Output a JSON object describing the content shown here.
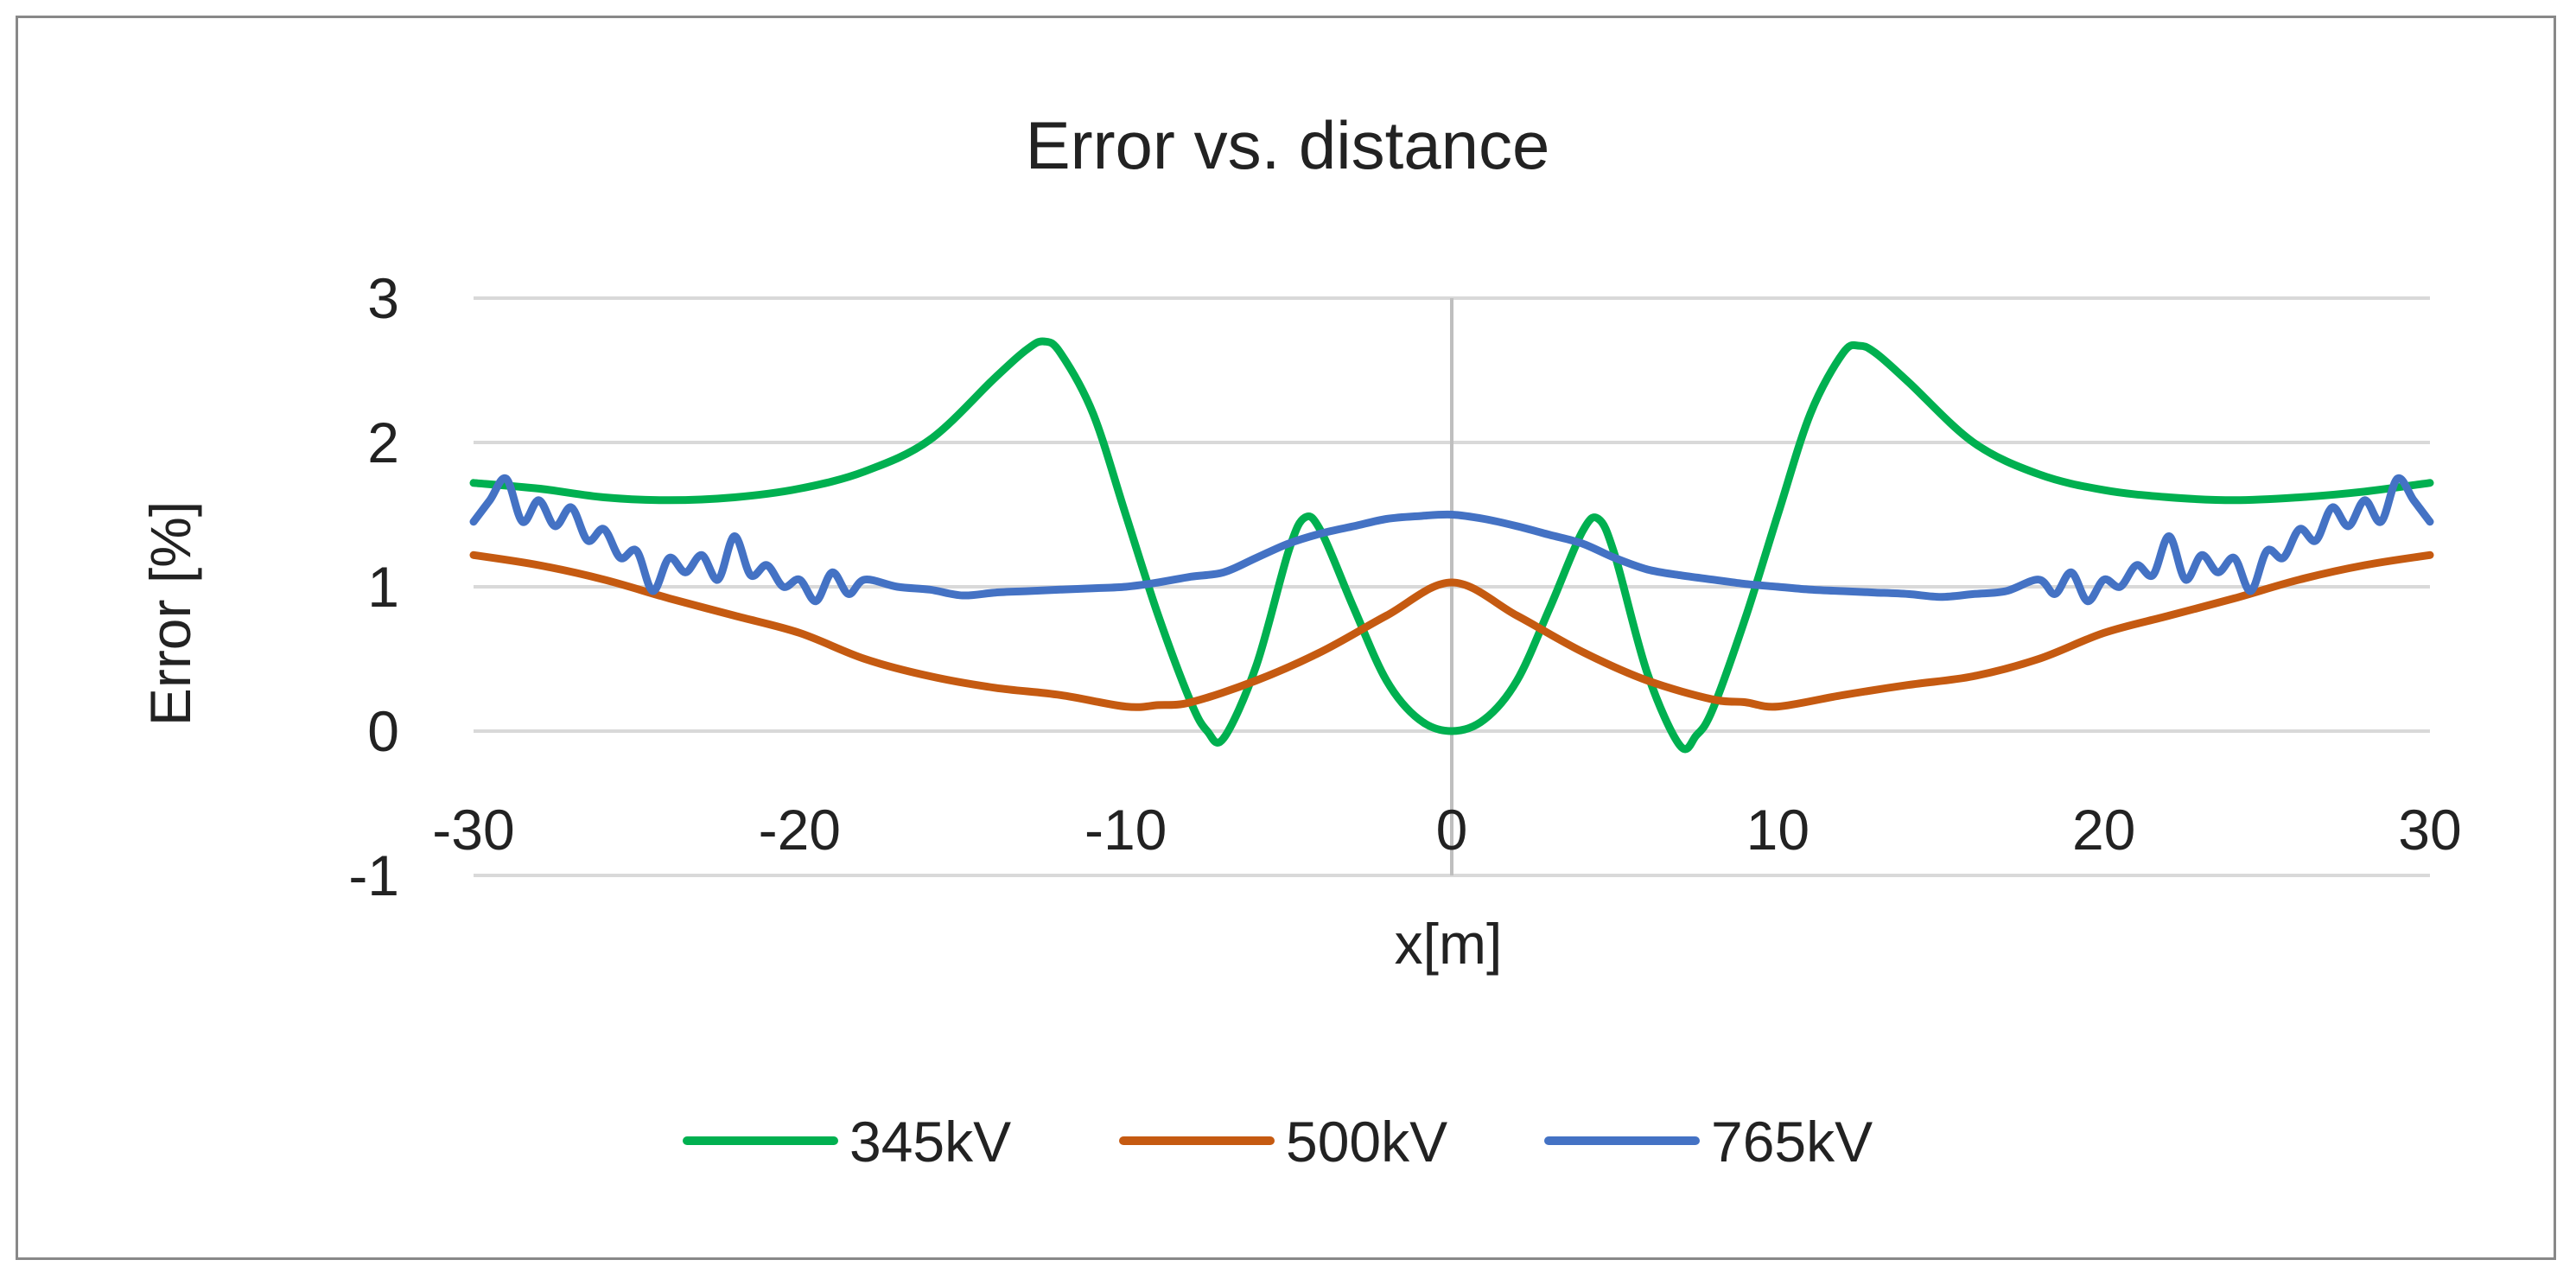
{
  "chart_data": {
    "type": "line",
    "title": "Error vs. distance",
    "xlabel": "x[m]",
    "ylabel": "Error [%]",
    "xlim": [
      -30,
      30
    ],
    "ylim": [
      -1,
      3
    ],
    "xticks": [
      -30,
      -20,
      -10,
      0,
      10,
      20,
      30
    ],
    "yticks": [
      -1,
      0,
      1,
      2,
      3
    ],
    "grid": "horizontal",
    "legend": "bottom",
    "series": [
      {
        "name": "345kV",
        "color": "#00b050",
        "x": [
          -30,
          -28,
          -26,
          -24,
          -22,
          -20,
          -18,
          -16,
          -14,
          -13,
          -12.5,
          -12,
          -11,
          -10,
          -9,
          -8,
          -7.5,
          -7,
          -6,
          -5,
          -4.5,
          -4,
          -3,
          -2,
          -1,
          0,
          1,
          2,
          3,
          4,
          4.5,
          5,
          6,
          7,
          7.5,
          8,
          9,
          10,
          11,
          12,
          12.5,
          13,
          14,
          16,
          18,
          20,
          22,
          24,
          26,
          28,
          30
        ],
        "y": [
          1.72,
          1.68,
          1.62,
          1.6,
          1.62,
          1.68,
          1.8,
          2.02,
          2.45,
          2.65,
          2.7,
          2.62,
          2.2,
          1.5,
          0.8,
          0.2,
          0.0,
          -0.05,
          0.45,
          1.25,
          1.48,
          1.38,
          0.85,
          0.35,
          0.08,
          0.0,
          0.08,
          0.35,
          0.85,
          1.38,
          1.47,
          1.22,
          0.4,
          -0.1,
          -0.03,
          0.15,
          0.78,
          1.5,
          2.2,
          2.62,
          2.67,
          2.62,
          2.42,
          2.0,
          1.78,
          1.67,
          1.62,
          1.6,
          1.62,
          1.66,
          1.72
        ]
      },
      {
        "name": "500kV",
        "color": "#c55a11",
        "x": [
          -30,
          -28,
          -26,
          -24,
          -22,
          -20,
          -18,
          -16,
          -14,
          -12,
          -10,
          -9,
          -8,
          -6,
          -4,
          -2,
          0,
          2,
          4,
          6,
          8,
          9,
          10,
          12,
          14,
          16,
          18,
          20,
          22,
          24,
          26,
          28,
          30
        ],
        "y": [
          1.22,
          1.15,
          1.05,
          0.92,
          0.8,
          0.68,
          0.5,
          0.38,
          0.3,
          0.25,
          0.17,
          0.18,
          0.2,
          0.35,
          0.55,
          0.8,
          1.03,
          0.8,
          0.55,
          0.35,
          0.22,
          0.2,
          0.17,
          0.25,
          0.32,
          0.38,
          0.5,
          0.68,
          0.8,
          0.92,
          1.05,
          1.15,
          1.22
        ]
      },
      {
        "name": "765kV",
        "color": "#4472c4",
        "x": [
          -30,
          -29.5,
          -29,
          -28.5,
          -28,
          -27.5,
          -27,
          -26.5,
          -26,
          -25.5,
          -25,
          -24.5,
          -24,
          -23.5,
          -23,
          -22.5,
          -22,
          -21.5,
          -21,
          -20.5,
          -20,
          -19.5,
          -19,
          -18.5,
          -18,
          -17,
          -16,
          -15,
          -14,
          -13,
          -12,
          -11,
          -10,
          -9,
          -8,
          -7,
          -6,
          -5,
          -4,
          -3,
          -2,
          -1,
          0,
          1,
          2,
          3,
          4,
          5,
          6,
          7,
          8,
          9,
          10,
          11,
          12,
          13,
          14,
          15,
          16,
          17,
          18,
          18.5,
          19,
          19.5,
          20,
          20.5,
          21,
          21.5,
          22,
          22.5,
          23,
          23.5,
          24,
          24.5,
          25,
          25.5,
          26,
          26.5,
          27,
          27.5,
          28,
          28.5,
          29,
          29.5,
          30
        ],
        "y": [
          1.45,
          1.6,
          1.75,
          1.45,
          1.6,
          1.42,
          1.55,
          1.32,
          1.4,
          1.2,
          1.25,
          0.97,
          1.2,
          1.1,
          1.22,
          1.05,
          1.35,
          1.08,
          1.15,
          1.0,
          1.05,
          0.9,
          1.1,
          0.95,
          1.05,
          1.0,
          0.98,
          0.94,
          0.96,
          0.97,
          0.98,
          0.99,
          1.0,
          1.03,
          1.07,
          1.1,
          1.2,
          1.3,
          1.37,
          1.42,
          1.47,
          1.49,
          1.5,
          1.47,
          1.42,
          1.36,
          1.3,
          1.2,
          1.12,
          1.08,
          1.05,
          1.02,
          1.0,
          0.98,
          0.97,
          0.96,
          0.95,
          0.93,
          0.95,
          0.97,
          1.05,
          0.95,
          1.1,
          0.9,
          1.05,
          1.0,
          1.15,
          1.08,
          1.35,
          1.05,
          1.22,
          1.1,
          1.2,
          0.97,
          1.25,
          1.2,
          1.4,
          1.32,
          1.55,
          1.42,
          1.6,
          1.45,
          1.75,
          1.6,
          1.45
        ]
      }
    ]
  }
}
